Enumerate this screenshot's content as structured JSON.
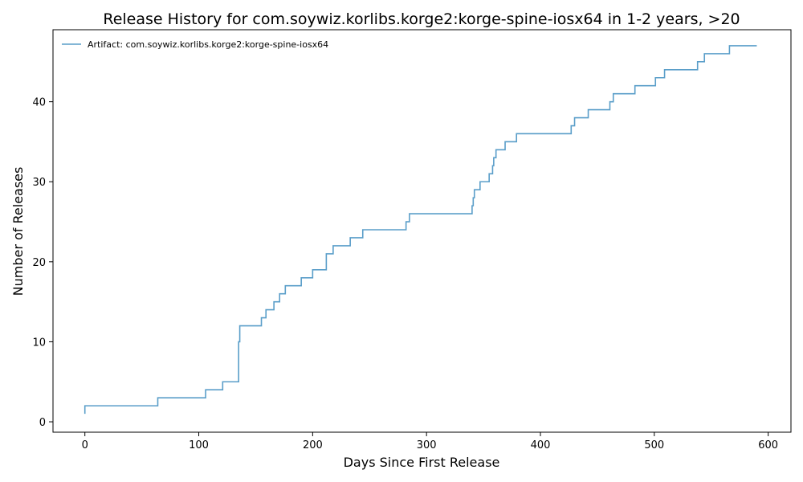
{
  "chart_data": {
    "type": "line",
    "title": "Release History for com.soywiz.korlibs.korge2:korge-spine-iosx64 in 1-2 years, >20",
    "xlabel": "Days Since First Release",
    "ylabel": "Number of Releases",
    "xlim": [
      -28,
      620
    ],
    "ylim": [
      -1.3,
      49
    ],
    "xticks": [
      0,
      100,
      200,
      300,
      400,
      500,
      600
    ],
    "yticks": [
      0,
      10,
      20,
      30,
      40
    ],
    "grid": false,
    "legend_position": "top-left",
    "step": true,
    "series": [
      {
        "name": "Artifact: com.soywiz.korlibs.korge2:korge-spine-iosx64",
        "color": "#5a9ec9",
        "points": [
          [
            0,
            1
          ],
          [
            0,
            2
          ],
          [
            64,
            3
          ],
          [
            106,
            4
          ],
          [
            121,
            5
          ],
          [
            135,
            9
          ],
          [
            135,
            10
          ],
          [
            136,
            12
          ],
          [
            155,
            13
          ],
          [
            159,
            14
          ],
          [
            166,
            15
          ],
          [
            171,
            16
          ],
          [
            176,
            17
          ],
          [
            190,
            18
          ],
          [
            200,
            19
          ],
          [
            212,
            21
          ],
          [
            218,
            22
          ],
          [
            233,
            23
          ],
          [
            244,
            24
          ],
          [
            282,
            25
          ],
          [
            285,
            26
          ],
          [
            340,
            27
          ],
          [
            341,
            28
          ],
          [
            342,
            29
          ],
          [
            347,
            30
          ],
          [
            355,
            31
          ],
          [
            358,
            32
          ],
          [
            359,
            33
          ],
          [
            361,
            34
          ],
          [
            369,
            35
          ],
          [
            379,
            36
          ],
          [
            427,
            37
          ],
          [
            430,
            38
          ],
          [
            442,
            39
          ],
          [
            461,
            40
          ],
          [
            464,
            41
          ],
          [
            483,
            42
          ],
          [
            501,
            43
          ],
          [
            509,
            44
          ],
          [
            538,
            45
          ],
          [
            544,
            46
          ],
          [
            566,
            47
          ],
          [
            590,
            47
          ]
        ]
      }
    ]
  }
}
